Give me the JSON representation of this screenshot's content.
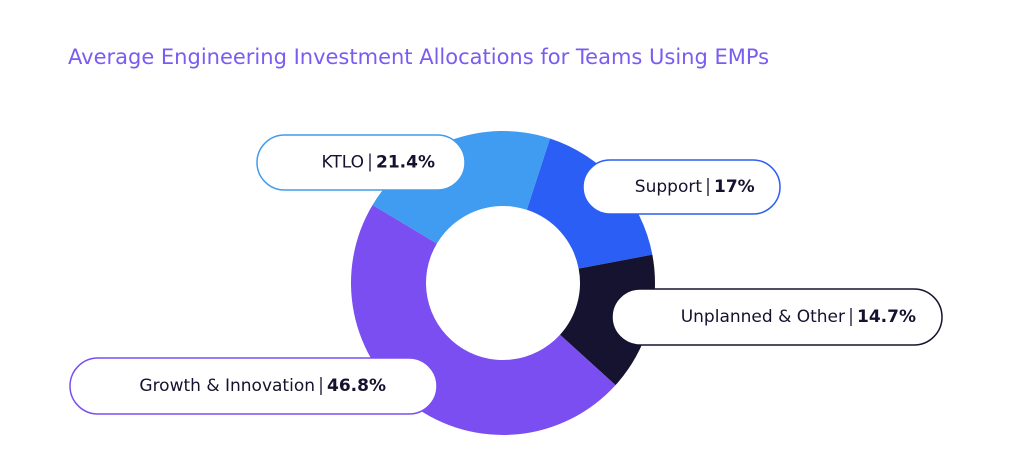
{
  "chart_data": {
    "type": "donut",
    "title": "Average Engineering Investment Allocations for Teams Using EMPs",
    "categories": [
      "Support",
      "Unplanned & Other",
      "Growth & Innovation",
      "KTLO"
    ],
    "values": [
      17,
      14.7,
      46.8,
      21.4
    ],
    "value_labels": [
      "17%",
      "14.7%",
      "46.8%",
      "21.4%"
    ],
    "colors": [
      "#2b5ef4",
      "#15132f",
      "#7a4ef0",
      "#409cf0"
    ]
  }
}
